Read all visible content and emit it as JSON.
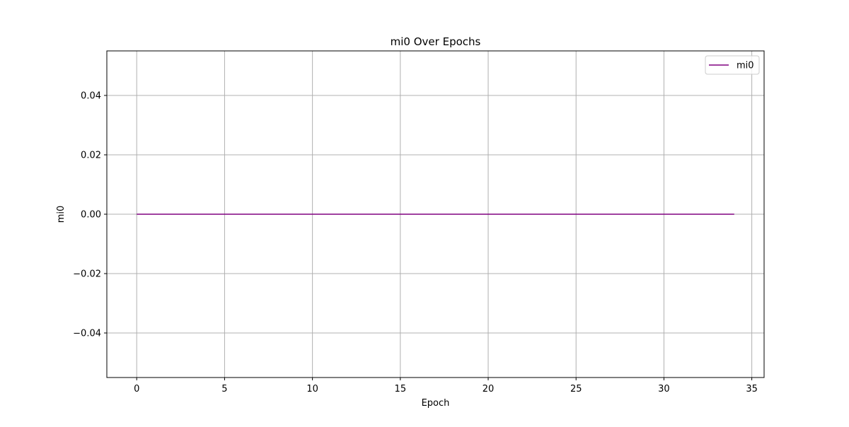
{
  "chart_data": {
    "type": "line",
    "title": "mi0 Over Epochs",
    "xlabel": "Epoch",
    "ylabel": "mi0",
    "xlim": [
      -1.7,
      35.7
    ],
    "ylim": [
      -0.055,
      0.055
    ],
    "x_ticks": [
      0,
      5,
      10,
      15,
      20,
      25,
      30,
      35
    ],
    "x_tick_labels": [
      "0",
      "5",
      "10",
      "15",
      "20",
      "25",
      "30",
      "35"
    ],
    "y_ticks": [
      -0.04,
      -0.02,
      0.0,
      0.02,
      0.04
    ],
    "y_tick_labels": [
      "−0.04",
      "−0.02",
      "0.00",
      "0.02",
      "0.04"
    ],
    "grid": true,
    "legend_position": "upper right",
    "series": [
      {
        "name": "mi0",
        "color": "#800080",
        "x": [
          0,
          1,
          2,
          3,
          4,
          5,
          6,
          7,
          8,
          9,
          10,
          11,
          12,
          13,
          14,
          15,
          16,
          17,
          18,
          19,
          20,
          21,
          22,
          23,
          24,
          25,
          26,
          27,
          28,
          29,
          30,
          31,
          32,
          33,
          34
        ],
        "y": [
          0,
          0,
          0,
          0,
          0,
          0,
          0,
          0,
          0,
          0,
          0,
          0,
          0,
          0,
          0,
          0,
          0,
          0,
          0,
          0,
          0,
          0,
          0,
          0,
          0,
          0,
          0,
          0,
          0,
          0,
          0,
          0,
          0,
          0,
          0
        ]
      }
    ]
  }
}
